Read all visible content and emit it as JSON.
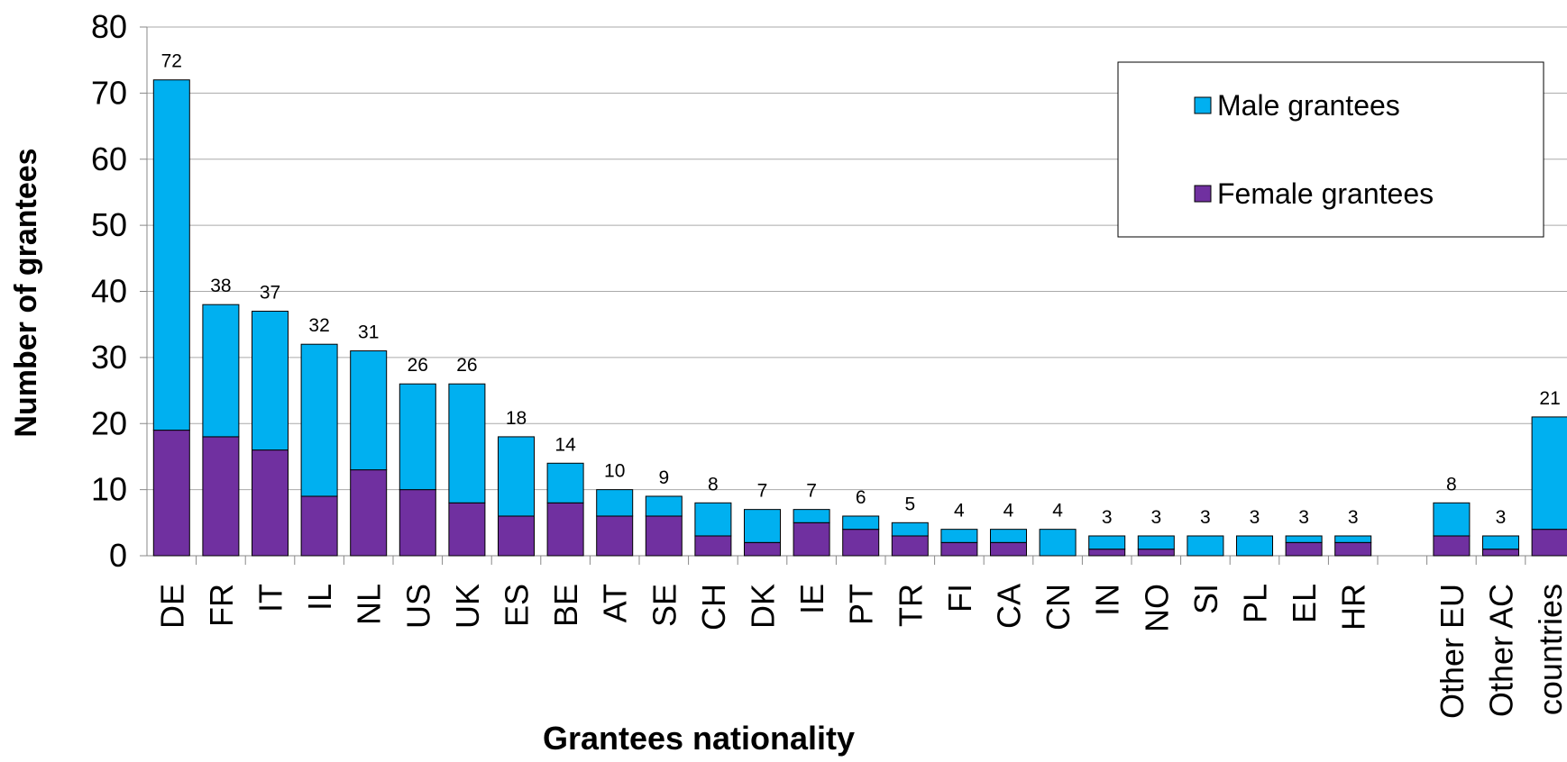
{
  "chart_data": {
    "type": "stacked_bar",
    "y_label": "Number of grantees",
    "x_label": "Grantees nationality",
    "categories": [
      "DE",
      "FR",
      "IT",
      "IL",
      "NL",
      "US",
      "UK",
      "ES",
      "BE",
      "AT",
      "SE",
      "CH",
      "DK",
      "IE",
      "PT",
      "TR",
      "FI",
      "CA",
      "CN",
      "IN",
      "NO",
      "SI",
      "PL",
      "EL",
      "HR",
      null,
      "Other EU",
      "Other AC",
      "countries"
    ],
    "series": [
      {
        "name": "Female grantees",
        "color": "#7030a0",
        "values": [
          19,
          18,
          16,
          9,
          13,
          10,
          8,
          6,
          8,
          6,
          6,
          3,
          2,
          5,
          4,
          3,
          2,
          2,
          0,
          1,
          1,
          0,
          0,
          2,
          2,
          null,
          3,
          1,
          4
        ]
      },
      {
        "name": "Male grantees",
        "color": "#00b0f0",
        "values": [
          53,
          20,
          21,
          23,
          18,
          16,
          18,
          12,
          6,
          4,
          3,
          5,
          5,
          2,
          2,
          2,
          2,
          2,
          4,
          2,
          2,
          3,
          3,
          1,
          1,
          null,
          5,
          2,
          17
        ]
      }
    ],
    "totals": [
      72,
      38,
      37,
      32,
      31,
      26,
      26,
      18,
      14,
      10,
      9,
      8,
      7,
      7,
      6,
      5,
      4,
      4,
      4,
      3,
      3,
      3,
      3,
      3,
      3,
      null,
      8,
      3,
      21
    ],
    "ylim": [
      0,
      80
    ],
    "yticks": [
      0,
      10,
      20,
      30,
      40,
      50,
      60,
      70,
      80
    ],
    "grid": true,
    "legend": "upper right"
  }
}
